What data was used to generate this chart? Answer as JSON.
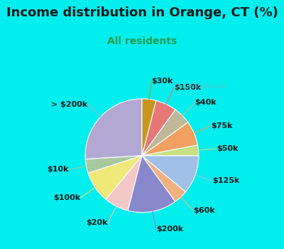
{
  "title": "Income distribution in Orange, CT (%)",
  "subtitle": "All residents",
  "title_color": "#1a1a1a",
  "subtitle_color": "#2a9d4e",
  "bg_top_color": "#00eeee",
  "watermark": "© City-Data.com",
  "labels": [
    "> $200k",
    "$10k",
    "$100k",
    "$20k",
    "$200k",
    "$60k",
    "$125k",
    "$50k",
    "$75k",
    "$40k",
    "$150k",
    "$30k"
  ],
  "values": [
    26,
    4,
    9,
    7,
    14,
    4,
    11,
    3,
    7,
    5,
    6,
    4
  ],
  "colors": [
    "#b3a8d4",
    "#a8c8a0",
    "#f0e878",
    "#f5c8c8",
    "#8888cc",
    "#f0b080",
    "#a0c0e8",
    "#c8e080",
    "#f0a060",
    "#c0b898",
    "#e87878",
    "#c8961e"
  ],
  "startangle": 90,
  "label_fontsize": 8,
  "title_fontsize": 13,
  "subtitle_fontsize": 10,
  "wedge_edgecolor": "white",
  "wedge_linewidth": 0.8
}
